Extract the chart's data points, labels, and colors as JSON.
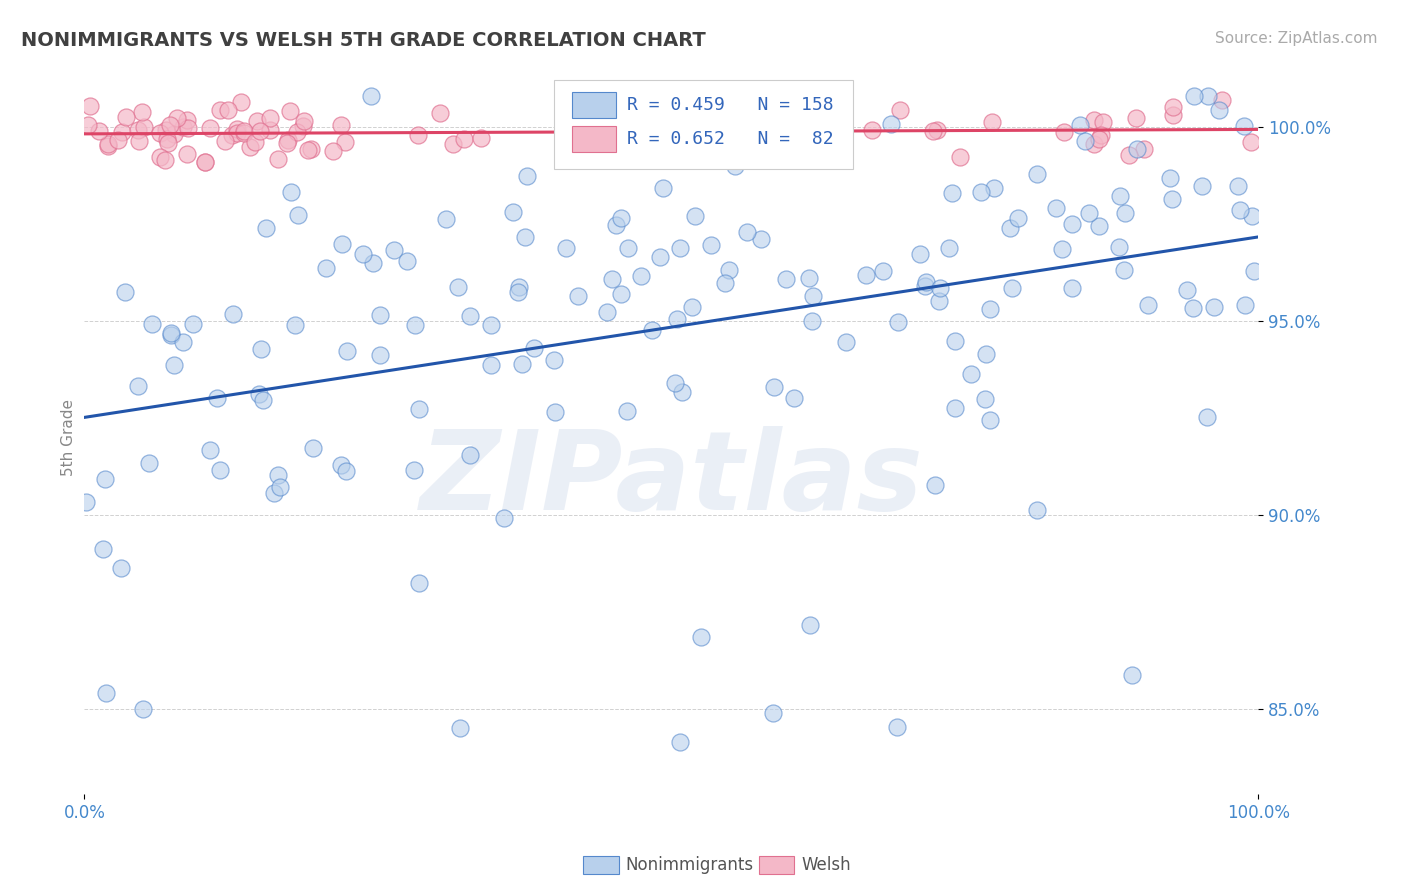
{
  "title": "NONIMMIGRANTS VS WELSH 5TH GRADE CORRELATION CHART",
  "source": "Source: ZipAtlas.com",
  "ylabel": "5th Grade",
  "xlim": [
    0.0,
    1.0
  ],
  "ylim": [
    0.828,
    1.012
  ],
  "yticks": [
    0.85,
    0.9,
    0.95,
    1.0
  ],
  "ytick_labels": [
    "85.0%",
    "90.0%",
    "95.0%",
    "100.0%"
  ],
  "xtick_labels": [
    "0.0%",
    "100.0%"
  ],
  "blue_R": 0.459,
  "blue_N": 158,
  "pink_R": 0.652,
  "pink_N": 82,
  "blue_scatter_color": "#b8d0ec",
  "blue_edge_color": "#5588cc",
  "pink_scatter_color": "#f4b8c8",
  "pink_edge_color": "#e07090",
  "blue_line_color": "#2255aa",
  "pink_line_color": "#dd4466",
  "legend_label_blue": "Nonimmigrants",
  "legend_label_pink": "Welsh",
  "watermark_text": "ZIPatlas",
  "background_color": "#ffffff",
  "grid_color": "#cccccc",
  "title_color": "#404040",
  "axis_label_color": "#888888",
  "tick_label_color": "#4488cc",
  "legend_text_color": "#3366bb",
  "title_fontsize": 14,
  "source_fontsize": 11,
  "tick_fontsize": 12,
  "legend_fontsize": 13
}
